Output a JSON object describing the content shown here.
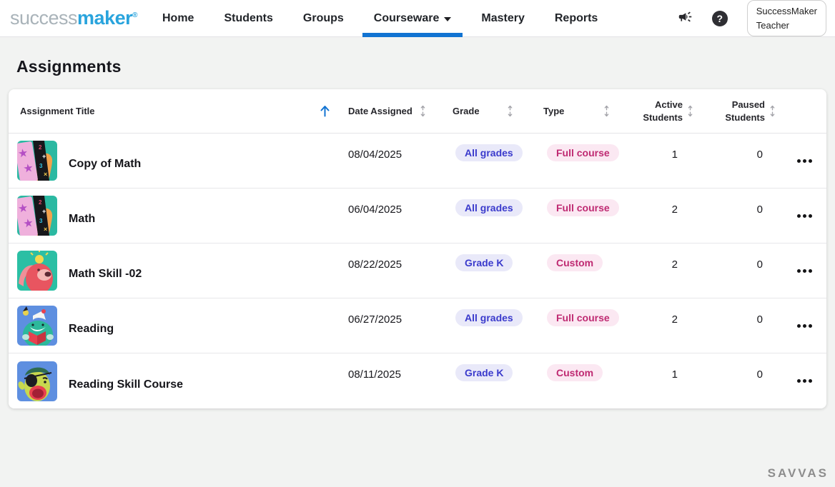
{
  "brand": {
    "logo_success": "success",
    "logo_maker": "maker",
    "registered": "®"
  },
  "nav": {
    "items": [
      {
        "label": "Home",
        "active": false,
        "has_dropdown": false
      },
      {
        "label": "Students",
        "active": false,
        "has_dropdown": false
      },
      {
        "label": "Groups",
        "active": false,
        "has_dropdown": false
      },
      {
        "label": "Courseware",
        "active": true,
        "has_dropdown": true
      },
      {
        "label": "Mastery",
        "active": false,
        "has_dropdown": false
      },
      {
        "label": "Reports",
        "active": false,
        "has_dropdown": false
      }
    ]
  },
  "icons": {
    "announcements": "megaphone-icon",
    "help_glyph": "?",
    "row_menu": "ellipsis-icon"
  },
  "user_badge": {
    "line1": "SuccessMaker",
    "line2": "Teacher"
  },
  "page": {
    "title": "Assignments"
  },
  "table": {
    "columns": [
      {
        "label": "Assignment Title",
        "sort": "asc"
      },
      {
        "label": "Date Assigned",
        "sort": "none"
      },
      {
        "label": "Grade",
        "sort": "none"
      },
      {
        "label": "Type",
        "sort": "none"
      },
      {
        "label": "Active Students",
        "sort": "none"
      },
      {
        "label": "Paused Students",
        "sort": "none"
      }
    ],
    "rows": [
      {
        "title": "Copy of Math",
        "date_assigned": "08/04/2025",
        "grade": "All grades",
        "type": "Full course",
        "active_students": "1",
        "paused_students": "0",
        "thumbnail": "math-book"
      },
      {
        "title": "Math",
        "date_assigned": "06/04/2025",
        "grade": "All grades",
        "type": "Full course",
        "active_students": "2",
        "paused_students": "0",
        "thumbnail": "math-book"
      },
      {
        "title": "Math Skill -02",
        "date_assigned": "08/22/2025",
        "grade": "Grade K",
        "type": "Custom",
        "active_students": "2",
        "paused_students": "0",
        "thumbnail": "bear-idea"
      },
      {
        "title": "Reading",
        "date_assigned": "06/27/2025",
        "grade": "All grades",
        "type": "Full course",
        "active_students": "2",
        "paused_students": "0",
        "thumbnail": "monster-reading"
      },
      {
        "title": "Reading Skill Course",
        "date_assigned": "08/11/2025",
        "grade": "Grade K",
        "type": "Custom",
        "active_students": "1",
        "paused_students": "0",
        "thumbnail": "avocado-pirate"
      }
    ]
  },
  "footer": {
    "brand": "SAVVAS"
  },
  "colors": {
    "accent_blue": "#1173d2",
    "logo_gray": "#a9b3b9",
    "logo_blue": "#29a4dd",
    "badge_grade_bg": "#e9e9f9",
    "badge_grade_text": "#3a3acc",
    "badge_type_bg": "#fbe8f2",
    "badge_type_text": "#bf2a72"
  }
}
